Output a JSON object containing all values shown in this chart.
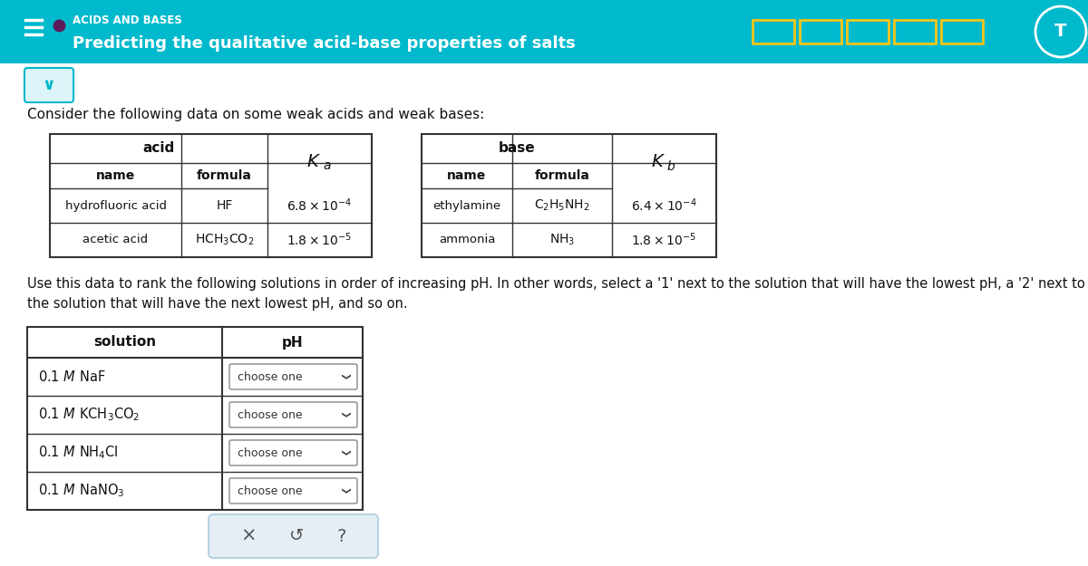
{
  "teal_color": "#00B9CC",
  "yellow_color": "#F5C518",
  "body_bg": "#FFFFFF",
  "title_small": "ACIDS AND BASES",
  "title_large": "Predicting the qualitative acid-base properties of salts",
  "intro_text": "Consider the following data on some weak acids and weak bases:",
  "fig_w": 12.0,
  "fig_h": 6.25,
  "dpi": 100
}
